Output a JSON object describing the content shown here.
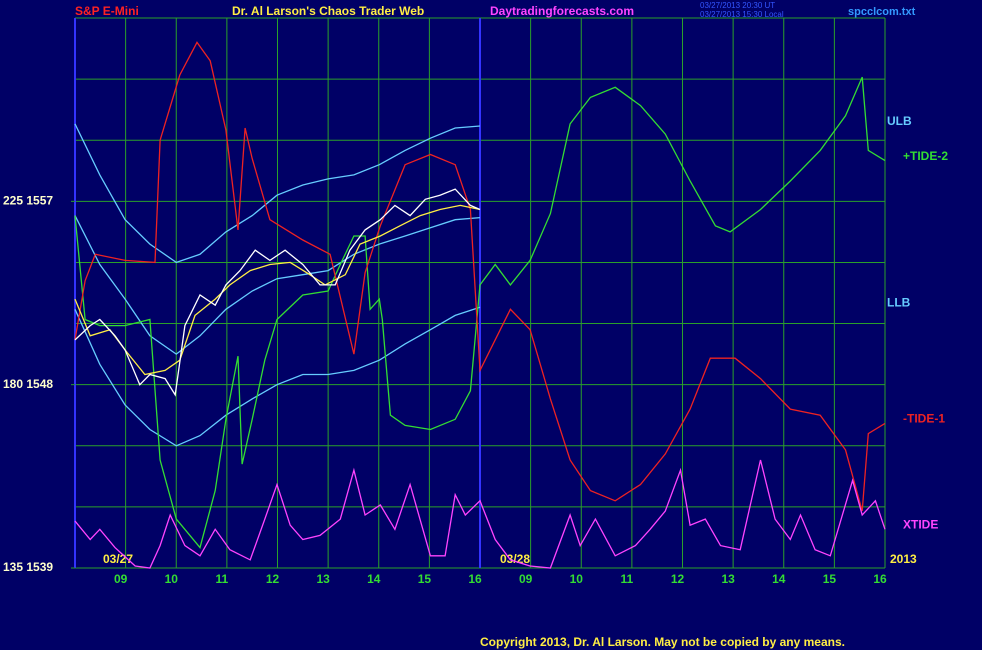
{
  "chart_data": {
    "type": "line",
    "title": "Dr. Al Larson's Chaos Trader Web",
    "subtitle": "S&P E-Mini",
    "website": "Daytradingforecasts.com",
    "timestamps": [
      "03/27/2013 20:30 UT",
      "03/27/2013 15:30 Local"
    ],
    "file": "spcclcom.txt",
    "copyright": "Copyright 2013, Dr. Al Larson. May not be copied by any means.",
    "dates": [
      "03/27",
      "03/28",
      "2013"
    ],
    "xlim": [
      0,
      16
    ],
    "xticks": [
      {
        "value": 1,
        "label": "09"
      },
      {
        "value": 2,
        "label": "10"
      },
      {
        "value": 3,
        "label": "11"
      },
      {
        "value": 4,
        "label": "12"
      },
      {
        "value": 5,
        "label": "13"
      },
      {
        "value": 6,
        "label": "14"
      },
      {
        "value": 7,
        "label": "15"
      },
      {
        "value": 8,
        "label": "16"
      },
      {
        "value": 9,
        "label": "09"
      },
      {
        "value": 10,
        "label": "10"
      },
      {
        "value": 11,
        "label": "11"
      },
      {
        "value": 12,
        "label": "12"
      },
      {
        "value": 13,
        "label": "13"
      },
      {
        "value": 14,
        "label": "14"
      },
      {
        "value": 15,
        "label": "15"
      },
      {
        "value": 16,
        "label": "16"
      }
    ],
    "day_separators": [
      8
    ],
    "ylim": [
      1539,
      1566
    ],
    "yticks": [
      {
        "value": 1539,
        "label": "135 1539"
      },
      {
        "value": 1548,
        "label": "180 1548"
      },
      {
        "value": 1557,
        "label": "225 1557"
      }
    ],
    "ygrid": [
      1539,
      1542,
      1545,
      1548,
      1551,
      1554,
      1557,
      1560,
      1563,
      1566
    ],
    "grid": true,
    "grid_color": "#2aa02a",
    "separator_color": "#3333ff",
    "series": [
      {
        "name": "ULB",
        "color": "#66ccff",
        "x": [
          0,
          0.49,
          0.99,
          1.48,
          2,
          2.47,
          2.98,
          3.5,
          3.99,
          4.5,
          5,
          5.51,
          6.01,
          6.52,
          7.02,
          7.51,
          8
        ],
        "values": [
          1560.8,
          1558.3,
          1556.1,
          1554.9,
          1554.0,
          1554.4,
          1555.5,
          1556.3,
          1557.3,
          1557.8,
          1558.1,
          1558.3,
          1558.8,
          1559.5,
          1560.1,
          1560.6,
          1560.7
        ]
      },
      {
        "color": "#66ccff",
        "x": [
          0,
          0.49,
          0.99,
          1.48,
          2,
          2.47,
          2.98,
          3.5,
          3.99,
          4.5,
          5,
          5.51,
          6.01,
          6.52,
          7.02,
          7.51,
          8
        ],
        "values": [
          1556.3,
          1553.9,
          1552.2,
          1550.4,
          1549.5,
          1550.4,
          1551.7,
          1552.6,
          1553.2,
          1553.4,
          1553.6,
          1554.4,
          1554.9,
          1555.3,
          1555.7,
          1556.1,
          1556.2
        ]
      },
      {
        "name": "LLB",
        "color": "#66ccff",
        "x": [
          0,
          0.49,
          0.99,
          1.48,
          2,
          2.47,
          2.98,
          3.5,
          3.99,
          4.5,
          5,
          5.51,
          6.01,
          6.52,
          7.02,
          7.51,
          8
        ],
        "values": [
          1551.7,
          1549.0,
          1547.0,
          1545.8,
          1545.0,
          1545.5,
          1546.5,
          1547.3,
          1548.0,
          1548.5,
          1548.5,
          1548.7,
          1549.2,
          1550.0,
          1550.7,
          1551.4,
          1551.8
        ]
      },
      {
        "name": "+TIDE-2",
        "color": "#33dd33",
        "x": [
          0,
          0.2,
          0.49,
          0.99,
          1.48,
          1.68,
          2,
          2.47,
          2.77,
          2.98,
          3.22,
          3.3,
          3.5,
          3.75,
          3.99,
          4.5,
          5,
          5.24,
          5.51,
          5.73,
          5.83,
          6.01,
          6.07,
          6.23,
          6.52,
          7.02,
          7.51,
          7.81,
          8,
          8.3,
          8.6,
          8.99,
          9.39,
          9.78,
          10.18,
          10.67,
          11.17,
          11.66,
          12.15,
          12.65,
          12.94,
          13.54,
          14.13,
          14.72,
          15.22,
          15.55,
          15.67,
          16
        ],
        "values": [
          1556.3,
          1551.2,
          1550.9,
          1550.9,
          1551.2,
          1544.3,
          1541.4,
          1540.0,
          1542.8,
          1546.3,
          1549.4,
          1544.1,
          1546.3,
          1549.2,
          1551.2,
          1552.4,
          1552.6,
          1553.9,
          1555.3,
          1555.3,
          1551.7,
          1552.2,
          1551.2,
          1546.5,
          1546.0,
          1545.8,
          1546.3,
          1547.7,
          1552.9,
          1553.9,
          1552.9,
          1554.1,
          1556.4,
          1560.8,
          1562.1,
          1562.6,
          1561.7,
          1560.3,
          1558.0,
          1555.8,
          1555.5,
          1556.6,
          1558.0,
          1559.5,
          1561.2,
          1563.1,
          1559.5,
          1559.0
        ]
      },
      {
        "name": "-TIDE-1",
        "color": "#ee2222",
        "x": [
          0,
          0.2,
          0.4,
          0.99,
          1.58,
          1.68,
          2.07,
          2.41,
          2.67,
          2.98,
          3.22,
          3.36,
          3.5,
          3.85,
          4.5,
          5.04,
          5.51,
          5.73,
          6.03,
          6.52,
          7.02,
          7.51,
          7.81,
          8,
          8.6,
          8.99,
          9.39,
          9.78,
          10.18,
          10.67,
          11.17,
          11.66,
          12.15,
          12.55,
          13.04,
          13.54,
          14.13,
          14.72,
          15.22,
          15.55,
          15.67,
          16
        ],
        "values": [
          1550.2,
          1553.1,
          1554.4,
          1554.1,
          1554.0,
          1560.0,
          1563.2,
          1564.8,
          1563.9,
          1560.5,
          1555.6,
          1560.6,
          1559.1,
          1556.1,
          1555.1,
          1554.4,
          1549.5,
          1553.5,
          1555.8,
          1558.8,
          1559.3,
          1558.8,
          1556.6,
          1548.7,
          1551.7,
          1550.7,
          1547.3,
          1544.3,
          1542.8,
          1542.3,
          1543.1,
          1544.6,
          1546.8,
          1549.3,
          1549.3,
          1548.3,
          1546.8,
          1546.5,
          1544.8,
          1541.8,
          1545.6,
          1546.1
        ]
      },
      {
        "name": "XTIDE",
        "color": "#ff44ff",
        "x": [
          0,
          0.3,
          0.49,
          0.79,
          1.19,
          1.48,
          1.68,
          1.88,
          2.17,
          2.47,
          2.77,
          3.06,
          3.46,
          3.75,
          3.99,
          4.25,
          4.5,
          4.84,
          5.24,
          5.51,
          5.73,
          6.03,
          6.32,
          6.62,
          7.02,
          7.31,
          7.51,
          7.71,
          8,
          8.3,
          8.6,
          8.99,
          9.39,
          9.78,
          9.98,
          10.28,
          10.67,
          11.07,
          11.36,
          11.66,
          11.96,
          12.15,
          12.45,
          12.75,
          13.14,
          13.54,
          13.83,
          14.13,
          14.33,
          14.62,
          14.92,
          15.36,
          15.55,
          15.81,
          16
        ],
        "values": [
          1541.3,
          1540.4,
          1540.9,
          1540.0,
          1539.1,
          1539.0,
          1540.1,
          1541.6,
          1540.1,
          1539.6,
          1540.9,
          1539.9,
          1539.4,
          1541.4,
          1543.1,
          1541.1,
          1540.4,
          1540.6,
          1541.4,
          1543.8,
          1541.6,
          1542.1,
          1540.9,
          1543.1,
          1539.6,
          1539.6,
          1542.6,
          1541.6,
          1542.3,
          1540.4,
          1539.4,
          1539.1,
          1539.0,
          1541.6,
          1540.1,
          1541.4,
          1539.6,
          1540.1,
          1540.9,
          1541.8,
          1543.8,
          1541.1,
          1541.4,
          1540.1,
          1539.9,
          1544.3,
          1541.4,
          1540.4,
          1541.6,
          1539.9,
          1539.6,
          1543.3,
          1541.6,
          1542.3,
          1540.9
        ]
      },
      {
        "color": "#ffee44",
        "x": [
          0,
          0.3,
          0.69,
          0.99,
          1.38,
          1.78,
          2.07,
          2.37,
          2.77,
          3.06,
          3.46,
          3.85,
          4.25,
          4.64,
          4.94,
          5.34,
          5.63,
          6.03,
          6.42,
          6.82,
          7.21,
          7.61,
          8
        ],
        "values": [
          1552.2,
          1550.4,
          1550.7,
          1549.7,
          1548.5,
          1548.7,
          1549.2,
          1551.4,
          1552.2,
          1552.9,
          1553.6,
          1553.9,
          1554.0,
          1553.4,
          1552.9,
          1553.4,
          1554.9,
          1555.3,
          1555.8,
          1556.3,
          1556.6,
          1556.8,
          1556.6
        ]
      },
      {
        "color": "#ffffff",
        "x": [
          0,
          0.3,
          0.49,
          0.79,
          0.99,
          1.28,
          1.48,
          1.78,
          1.98,
          2.17,
          2.47,
          2.77,
          2.98,
          3.26,
          3.56,
          3.85,
          4.15,
          4.5,
          4.84,
          5.14,
          5.43,
          5.73,
          6.03,
          6.32,
          6.62,
          6.92,
          7.21,
          7.51,
          7.81,
          8
        ],
        "values": [
          1550.2,
          1550.9,
          1551.2,
          1550.4,
          1549.7,
          1548.0,
          1548.5,
          1548.3,
          1547.5,
          1550.9,
          1552.4,
          1551.9,
          1552.9,
          1553.6,
          1554.6,
          1554.1,
          1554.6,
          1553.9,
          1552.9,
          1552.9,
          1554.6,
          1555.6,
          1556.1,
          1556.8,
          1556.3,
          1557.1,
          1557.3,
          1557.6,
          1556.8,
          1556.6
        ]
      }
    ]
  }
}
